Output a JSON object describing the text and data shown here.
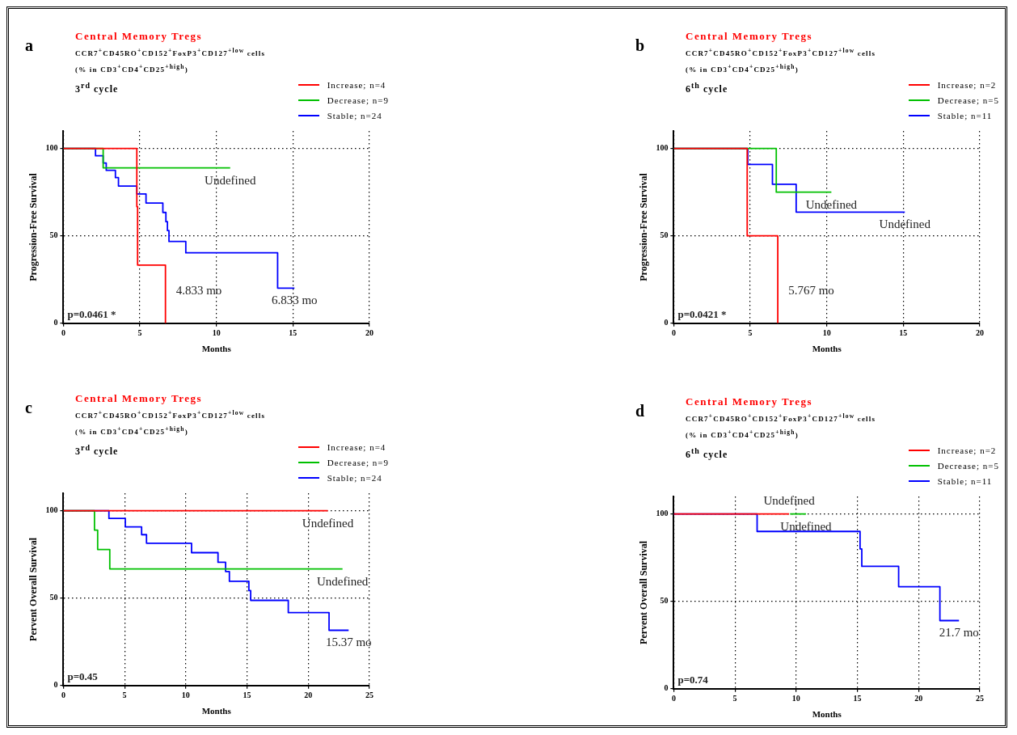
{
  "chart_data": [
    {
      "type": "step",
      "title": "Central Memory Tregs",
      "subtitle": "CCR7$^{+}$CD45RO$^{+}$CD152$^{+}$FoxP3$^{+}$CD127$^{+low}$ cells\n(% in CD3$^{+}$CD4$^{+}$CD25$^{+high}$)\n3$^{rd}$ cycle",
      "xlabel": "Months",
      "ylabel": "Progression-Free Survival",
      "xlim": [
        0,
        20
      ],
      "xticks": [
        0,
        5,
        10,
        15,
        20
      ],
      "ylim": [
        0,
        110
      ],
      "yticks": [
        0,
        50,
        100
      ],
      "grid": true,
      "legend": "top right",
      "series": [
        {
          "name": "Increase; n=4",
          "color": "#ff0000",
          "x": [
            0,
            2.9,
            4.8,
            4.85,
            6.67
          ],
          "values": [
            100,
            100,
            66.7,
            33.3,
            0
          ]
        },
        {
          "name": "Decrease; n=9",
          "color": "#00c000",
          "x": [
            0,
            2.6,
            2.8,
            3.8,
            5.0,
            7.1,
            8.5,
            10.3,
            10.9
          ],
          "values": [
            100,
            88.9,
            88.9,
            88.9,
            88.9,
            88.9,
            88.9,
            88.9,
            88.9
          ]
        },
        {
          "name": "Stable; n=24",
          "color": "#0000ff",
          "x": [
            0,
            2.1,
            2.6,
            2.8,
            3.4,
            3.6,
            4.8,
            5.1,
            5.4,
            6.5,
            6.7,
            6.8,
            6.9,
            7.7,
            8.0,
            9.3,
            10.9,
            12.7,
            14.0,
            15.1
          ],
          "values": [
            100,
            95.8,
            91.7,
            87.5,
            83.3,
            78.5,
            74,
            74,
            68.8,
            63.4,
            58.1,
            53,
            46.8,
            46.8,
            40.3,
            40.3,
            40.3,
            40.3,
            20.1,
            20.1
          ]
        }
      ],
      "annotations": [
        "a",
        "p=0.0461 *",
        {
          "text": "Undefined",
          "x": 10.9,
          "y": 88.9
        },
        {
          "text": "6.833 mo",
          "x": 15.1,
          "y": 20.1
        },
        {
          "text": "4.833 mo",
          "x": 6.67,
          "y": 0
        }
      ]
    },
    {
      "type": "step",
      "title": "Central Memory Tregs",
      "subtitle": "CCR7$^{+}$CD45RO$^{+}$CD152$^{+}$FoxP3$^{+}$CD127$^{+low}$ cells\n(% in CD3$^{+}$CD4$^{+}$CD25$^{+high}$)\n6$^{th}$ cycle",
      "xlabel": "Months",
      "ylabel": "Progression-Free Survival",
      "xlim": [
        0,
        20
      ],
      "xticks": [
        0,
        5,
        10,
        15,
        20
      ],
      "ylim": [
        0,
        110
      ],
      "yticks": [
        0,
        50,
        100
      ],
      "grid": true,
      "legend": "top right",
      "series": [
        {
          "name": "Increase; n=2",
          "color": "#ff0000",
          "x": [
            0,
            4.8,
            6.8
          ],
          "values": [
            100,
            50,
            0
          ]
        },
        {
          "name": "Decrease; n=5",
          "color": "#00c000",
          "x": [
            0,
            5.0,
            6.7,
            7.2,
            8.5,
            10.3
          ],
          "values": [
            100,
            100,
            75,
            75,
            75,
            75
          ]
        },
        {
          "name": "Stable; n=11",
          "color": "#0000ff",
          "x": [
            0,
            4.84,
            6.4,
            6.45,
            6.8,
            7.8,
            8.0,
            9.3,
            10.9,
            12.7,
            15.1
          ],
          "values": [
            100,
            90.9,
            90.9,
            79.5,
            79.5,
            79.5,
            63.6,
            63.6,
            63.6,
            63.6,
            63.6
          ]
        }
      ],
      "annotations": [
        "b",
        "p=0.0421 *",
        {
          "text": "Undefined",
          "x": 10.3,
          "y": 75
        },
        {
          "text": "Undefined",
          "x": 15.1,
          "y": 63.6
        },
        {
          "text": "5.767 mo",
          "x": 6.8,
          "y": 0
        }
      ]
    },
    {
      "type": "step",
      "title": "Central Memory Tregs",
      "subtitle": "CCR7$^{+}$CD45RO$^{+}$CD152$^{+}$FoxP3$^{+}$CD127$^{+low}$ cells\n(% in CD3$^{+}$CD4$^{+}$CD25$^{+high}$)\n3$^{rd}$ cycle",
      "xlabel": "Months",
      "ylabel": "Pervent Overall Survival",
      "xlim": [
        0,
        25
      ],
      "xticks": [
        0,
        5,
        10,
        15,
        20,
        25
      ],
      "ylim": [
        0,
        110
      ],
      "yticks": [
        0,
        50,
        100
      ],
      "grid": true,
      "legend": "top right",
      "series": [
        {
          "name": "Increase; n=4",
          "color": "#ff0000",
          "x": [
            0,
            2.9,
            3.6,
            7.0,
            7.6,
            21.6
          ],
          "values": [
            100,
            100,
            100,
            100,
            100,
            100
          ]
        },
        {
          "name": "Decrease; n=9",
          "color": "#00c000",
          "x": [
            0,
            2.54,
            2.8,
            3.79,
            4.9,
            7.1,
            8.5,
            10.8,
            22.8
          ],
          "values": [
            100,
            88.9,
            77.8,
            66.7,
            66.7,
            66.7,
            66.7,
            66.7,
            66.7
          ]
        },
        {
          "name": "Stable; n=24",
          "color": "#0000ff",
          "x": [
            0,
            3.6,
            3.72,
            4.2,
            4.8,
            5.06,
            6.39,
            6.79,
            9.4,
            10.3,
            10.47,
            12.63,
            13.25,
            13.56,
            15.15,
            15.3,
            16.0,
            17.3,
            18.37,
            18.8,
            20.3,
            21.7,
            22.4,
            22.7,
            23.3
          ],
          "values": [
            100,
            100,
            95.6,
            95.6,
            95.6,
            90.7,
            86.3,
            81.4,
            81.4,
            81.4,
            76,
            70.5,
            65.2,
            59.6,
            54.3,
            48.7,
            48.7,
            48.7,
            41.7,
            41.7,
            41.7,
            31.6,
            31.6,
            31.6,
            31.6
          ]
        }
      ],
      "annotations": [
        "c",
        "p=0.45",
        {
          "text": "Undefined",
          "x": 21.6,
          "y": 100
        },
        {
          "text": "Undefined",
          "x": 22.8,
          "y": 66.7
        },
        {
          "text": "15.37 mo",
          "x": 23.3,
          "y": 31.6
        }
      ]
    },
    {
      "type": "step",
      "title": "Central Memory Tregs",
      "subtitle": "CCR7$^{+}$CD45RO$^{+}$CD152$^{+}$FoxP3$^{+}$CD127$^{+low}$ cells\n(% in CD3$^{+}$CD4$^{+}$CD25$^{+high}$)\n6$^{th}$ cycle",
      "xlabel": "Months",
      "ylabel": "Pervent Overall Survival",
      "xlim": [
        0,
        25
      ],
      "xticks": [
        0,
        5,
        10,
        15,
        20,
        25
      ],
      "ylim": [
        0,
        110
      ],
      "yticks": [
        0,
        50,
        100
      ],
      "grid": true,
      "legend": "top right",
      "series": [
        {
          "name": "Increase; n=2",
          "color": "#ff0000",
          "x": [
            0,
            7.03,
            9.42
          ],
          "values": [
            100,
            100,
            100
          ]
        },
        {
          "name": "Decrease; n=5",
          "color": "#00c000",
          "x": [
            9.5,
            10.8
          ],
          "values": [
            100,
            100
          ]
        },
        {
          "name": "Stable; n=11",
          "color": "#0000ff",
          "x": [
            0,
            6.81,
            15.22,
            15.36,
            17.3,
            18.37,
            20.3,
            21.6,
            21.74,
            22.4,
            23.3
          ],
          "values": [
            100,
            90,
            80,
            70,
            70,
            58.4,
            58.4,
            58.4,
            39,
            39,
            39
          ]
        }
      ],
      "annotations": [
        "d",
        "p=0.74",
        {
          "text": "Undefined",
          "x": 10.8,
          "y": 100
        },
        {
          "text": "Undefined",
          "x": 9.42,
          "y": 100
        },
        {
          "text": "21.7 mo",
          "x": 23.3,
          "y": 39
        }
      ]
    }
  ]
}
